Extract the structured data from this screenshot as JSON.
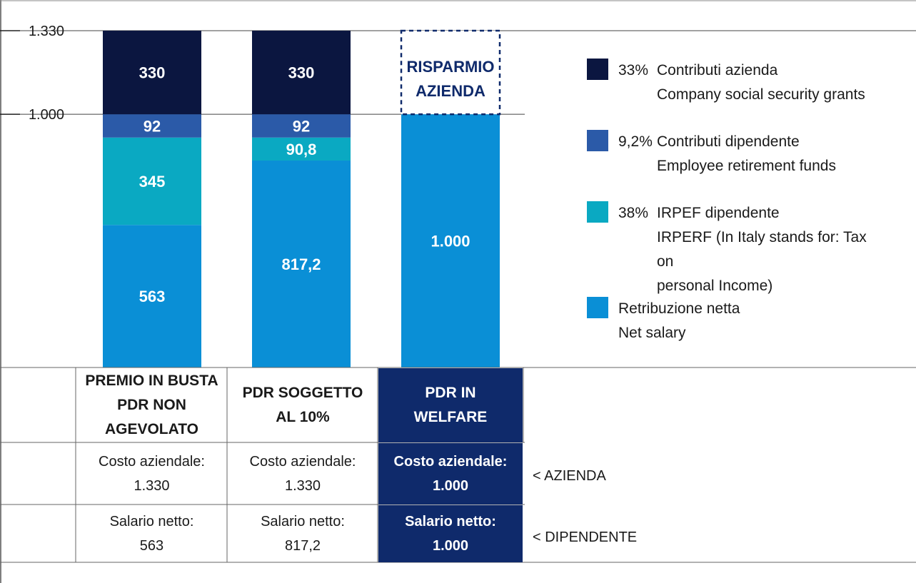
{
  "chart_data": {
    "type": "bar",
    "stacked": true,
    "y_ticks": [
      "1.330",
      "1.000"
    ],
    "y_tick_values": [
      1330,
      1000
    ],
    "ylim": [
      0,
      1330
    ],
    "categories": [
      "PREMIO IN BUSTA PDR NON AGEVOLATO",
      "PDR SOGGETTO AL 10%",
      "PDR IN WELFARE"
    ],
    "series": [
      {
        "name": "Retribuzione netta",
        "color": "#0a8fd6",
        "values": [
          563,
          817.2,
          1000
        ],
        "labels": [
          "563",
          "817,2",
          "1.000"
        ]
      },
      {
        "name": "IRPEF dipendente",
        "color": "#0aa9c2",
        "values": [
          345,
          90.8,
          0
        ],
        "labels": [
          "345",
          "90,8",
          ""
        ]
      },
      {
        "name": "Contributi dipendente",
        "color": "#2b5aa8",
        "values": [
          92,
          92,
          0
        ],
        "labels": [
          "92",
          "92",
          ""
        ]
      },
      {
        "name": "Contributi azienda",
        "color": "#0b1640",
        "values": [
          330,
          330,
          0
        ],
        "labels": [
          "330",
          "330",
          ""
        ]
      }
    ],
    "savings_box": {
      "label": "RISPARMIO\nAZIENDA",
      "from": 1000,
      "to": 1330,
      "color": "#0f2a6b"
    },
    "legend": [
      {
        "color": "#0b1640",
        "pct": "33%",
        "text": "Contributi azienda\nCompany social security grants"
      },
      {
        "color": "#2b5aa8",
        "pct": "9,2%",
        "text": "Contributi dipendente\nEmployee retirement funds"
      },
      {
        "color": "#0aa9c2",
        "pct": "38%",
        "text": "IRPEF dipendente\nIRPERF (In Italy stands for: Tax on\npersonal Income)"
      },
      {
        "color": "#0a8fd6",
        "pct": "",
        "text": "Retribuzione netta\nNet salary"
      }
    ]
  },
  "table": {
    "headers": [
      "PREMIO IN BUSTA\nPDR NON AGEVOLATO",
      "PDR SOGGETTO\nAL 10%",
      "PDR IN\nWELFARE"
    ],
    "row_cost": {
      "cells": [
        "Costo aziendale:\n1.330",
        "Costo aziendale:\n1.330",
        "Costo aziendale:\n1.000"
      ],
      "side_label": "< AZIENDA"
    },
    "row_salary": {
      "cells": [
        "Salario netto:\n563",
        "Salario netto:\n817,2",
        "Salario netto:\n1.000"
      ],
      "side_label": "< DIPENDENTE"
    },
    "highlight_color": "#0f2a6b"
  }
}
